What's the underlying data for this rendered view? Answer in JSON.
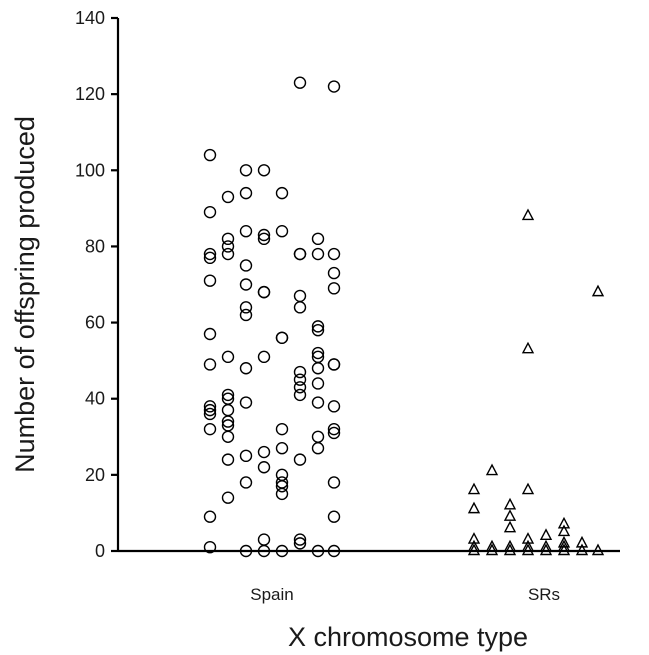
{
  "chart_data": {
    "type": "scatter",
    "xlabel": "X chromosome type",
    "ylabel": "Number of offspring produced",
    "ylim": [
      0,
      140
    ],
    "yticks": [
      0,
      20,
      40,
      60,
      80,
      100,
      120,
      140
    ],
    "categories": [
      "Spain",
      "SRs"
    ],
    "grid": false,
    "series": [
      {
        "category": "Spain",
        "marker": "circle",
        "points": [
          {
            "j": 0,
            "y": 104
          },
          {
            "j": 0,
            "y": 89
          },
          {
            "j": 0,
            "y": 78
          },
          {
            "j": 0,
            "y": 77
          },
          {
            "j": 0,
            "y": 71
          },
          {
            "j": 0,
            "y": 57
          },
          {
            "j": 0,
            "y": 49
          },
          {
            "j": 0,
            "y": 38
          },
          {
            "j": 0,
            "y": 37
          },
          {
            "j": 0,
            "y": 36
          },
          {
            "j": 0,
            "y": 32
          },
          {
            "j": 0,
            "y": 9
          },
          {
            "j": 0,
            "y": 1
          },
          {
            "j": 1,
            "y": 93
          },
          {
            "j": 1,
            "y": 82
          },
          {
            "j": 1,
            "y": 80
          },
          {
            "j": 1,
            "y": 78
          },
          {
            "j": 1,
            "y": 51
          },
          {
            "j": 1,
            "y": 41
          },
          {
            "j": 1,
            "y": 40
          },
          {
            "j": 1,
            "y": 37
          },
          {
            "j": 1,
            "y": 34
          },
          {
            "j": 1,
            "y": 33
          },
          {
            "j": 1,
            "y": 30
          },
          {
            "j": 1,
            "y": 24
          },
          {
            "j": 1,
            "y": 14
          },
          {
            "j": 2,
            "y": 100
          },
          {
            "j": 2,
            "y": 94
          },
          {
            "j": 2,
            "y": 84
          },
          {
            "j": 2,
            "y": 75
          },
          {
            "j": 2,
            "y": 70
          },
          {
            "j": 2,
            "y": 64
          },
          {
            "j": 2,
            "y": 62
          },
          {
            "j": 2,
            "y": 48
          },
          {
            "j": 2,
            "y": 39
          },
          {
            "j": 2,
            "y": 25
          },
          {
            "j": 2,
            "y": 18
          },
          {
            "j": 2,
            "y": 0
          },
          {
            "j": 3,
            "y": 100
          },
          {
            "j": 3,
            "y": 83
          },
          {
            "j": 3,
            "y": 82
          },
          {
            "j": 3,
            "y": 68
          },
          {
            "j": 3,
            "y": 68
          },
          {
            "j": 3,
            "y": 51
          },
          {
            "j": 3,
            "y": 26
          },
          {
            "j": 3,
            "y": 22
          },
          {
            "j": 3,
            "y": 3
          },
          {
            "j": 3,
            "y": 0
          },
          {
            "j": 4,
            "y": 94
          },
          {
            "j": 4,
            "y": 84
          },
          {
            "j": 4,
            "y": 56
          },
          {
            "j": 4,
            "y": 56
          },
          {
            "j": 4,
            "y": 32
          },
          {
            "j": 4,
            "y": 27
          },
          {
            "j": 4,
            "y": 20
          },
          {
            "j": 4,
            "y": 18
          },
          {
            "j": 4,
            "y": 17
          },
          {
            "j": 4,
            "y": 15
          },
          {
            "j": 4,
            "y": 0
          },
          {
            "j": 5,
            "y": 123
          },
          {
            "j": 5,
            "y": 78
          },
          {
            "j": 5,
            "y": 78
          },
          {
            "j": 5,
            "y": 67
          },
          {
            "j": 5,
            "y": 64
          },
          {
            "j": 5,
            "y": 47
          },
          {
            "j": 5,
            "y": 45
          },
          {
            "j": 5,
            "y": 43
          },
          {
            "j": 5,
            "y": 41
          },
          {
            "j": 5,
            "y": 24
          },
          {
            "j": 5,
            "y": 3
          },
          {
            "j": 5,
            "y": 2
          },
          {
            "j": 6,
            "y": 82
          },
          {
            "j": 6,
            "y": 78
          },
          {
            "j": 6,
            "y": 59
          },
          {
            "j": 6,
            "y": 58
          },
          {
            "j": 6,
            "y": 52
          },
          {
            "j": 6,
            "y": 51
          },
          {
            "j": 6,
            "y": 48
          },
          {
            "j": 6,
            "y": 44
          },
          {
            "j": 6,
            "y": 39
          },
          {
            "j": 6,
            "y": 30
          },
          {
            "j": 6,
            "y": 27
          },
          {
            "j": 6,
            "y": 0
          },
          {
            "j": 7,
            "y": 122
          },
          {
            "j": 7,
            "y": 78
          },
          {
            "j": 7,
            "y": 73
          },
          {
            "j": 7,
            "y": 69
          },
          {
            "j": 7,
            "y": 49
          },
          {
            "j": 7,
            "y": 49
          },
          {
            "j": 7,
            "y": 38
          },
          {
            "j": 7,
            "y": 32
          },
          {
            "j": 7,
            "y": 31
          },
          {
            "j": 7,
            "y": 18
          },
          {
            "j": 7,
            "y": 9
          },
          {
            "j": 7,
            "y": 0
          }
        ]
      },
      {
        "category": "SRs",
        "marker": "triangle",
        "points": [
          {
            "j": 0,
            "y": 16
          },
          {
            "j": 0,
            "y": 11
          },
          {
            "j": 0,
            "y": 3
          },
          {
            "j": 0,
            "y": 1
          },
          {
            "j": 0,
            "y": 0
          },
          {
            "j": 1,
            "y": 21
          },
          {
            "j": 1,
            "y": 1
          },
          {
            "j": 1,
            "y": 0
          },
          {
            "j": 2,
            "y": 12
          },
          {
            "j": 2,
            "y": 9
          },
          {
            "j": 2,
            "y": 6
          },
          {
            "j": 2,
            "y": 1
          },
          {
            "j": 2,
            "y": 0
          },
          {
            "j": 3,
            "y": 88
          },
          {
            "j": 3,
            "y": 53
          },
          {
            "j": 3,
            "y": 16
          },
          {
            "j": 3,
            "y": 3
          },
          {
            "j": 3,
            "y": 1
          },
          {
            "j": 3,
            "y": 0
          },
          {
            "j": 4,
            "y": 4
          },
          {
            "j": 4,
            "y": 1
          },
          {
            "j": 4,
            "y": 0
          },
          {
            "j": 5,
            "y": 7
          },
          {
            "j": 5,
            "y": 5
          },
          {
            "j": 5,
            "y": 2
          },
          {
            "j": 5,
            "y": 1
          },
          {
            "j": 5,
            "y": 0
          },
          {
            "j": 6,
            "y": 2
          },
          {
            "j": 6,
            "y": 0
          },
          {
            "j": 7,
            "y": 68
          },
          {
            "j": 7,
            "y": 0
          }
        ]
      }
    ]
  }
}
